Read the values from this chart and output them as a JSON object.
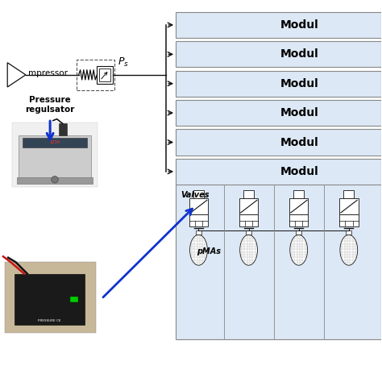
{
  "bg_color": "#ffffff",
  "module_box_color": "#dce8f5",
  "module_box_edge": "#888888",
  "module_labels": [
    "Modul",
    "Modul",
    "Modul",
    "Modul",
    "Modul",
    "Modul"
  ],
  "valve_label": "Valves",
  "pma_label": "pMAs",
  "ps_label": "$P_s$",
  "compressor_label": "mpressor",
  "pressure_reg_label": "Pressure\nregulsator",
  "arrow_color": "#1133cc",
  "line_color": "#111111",
  "n_modules": 6,
  "n_valves": 4,
  "fig_w": 4.74,
  "fig_h": 4.74,
  "dpi": 100
}
